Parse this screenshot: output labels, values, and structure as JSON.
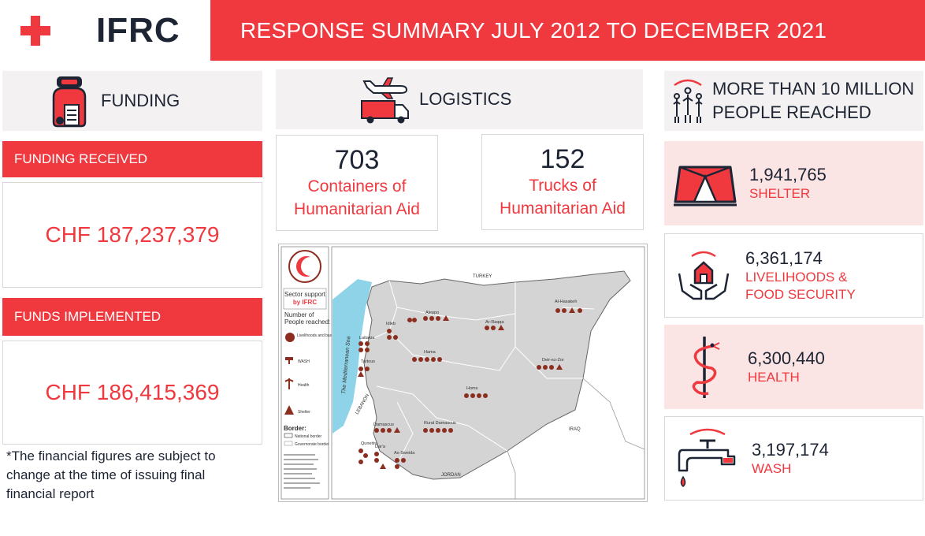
{
  "header": {
    "logo_text": "IFRC",
    "title": "RESPONSE SUMMARY JULY 2012 TO DECEMBER 2021"
  },
  "funding": {
    "title": "FUNDING",
    "received_label": "FUNDING RECEIVED",
    "received_amount": "CHF 187,237,379",
    "implemented_label": "FUNDS IMPLEMENTED",
    "implemented_amount": "CHF 186,415,369",
    "note": "*The financial figures are subject to change at the time of issuing final financial report"
  },
  "logistics": {
    "title": "LOGISTICS",
    "stats": [
      {
        "value": "703",
        "label_line1": "Containers of",
        "label_line2": "Humanitarian Aid"
      },
      {
        "value": "152",
        "label_line1": "Trucks of",
        "label_line2": "Humanitarian Aid"
      }
    ]
  },
  "reached": {
    "title_line1": "MORE THAN 10 MILLION",
    "title_line2": "PEOPLE REACHED",
    "items": [
      {
        "value": "1,941,765",
        "label_line1": "SHELTER",
        "label_line2": ""
      },
      {
        "value": "6,361,174",
        "label_line1": "LIVELIHOODS &",
        "label_line2": "FOOD SECURITY"
      },
      {
        "value": "6,300,440",
        "label_line1": "HEALTH",
        "label_line2": ""
      },
      {
        "value": "3,197,174",
        "label_line1": "WASH",
        "label_line2": ""
      }
    ]
  },
  "map": {
    "legend_title_line1": "Sector support",
    "legend_title_line2": "by IFRC",
    "legend_people_line1": "Number of",
    "legend_people_line2": "People reached:",
    "legend_items": [
      "Livelihoods and basic needs",
      "WASH",
      "Health",
      "Shelter"
    ],
    "border_title": "Border:",
    "border_items": [
      "National border",
      "Governorate border"
    ],
    "countries": [
      "TURKEY",
      "IRAQ",
      "JORDAN",
      "LEBANON"
    ],
    "sea": "The Mediterranean Sea",
    "governorates": [
      "Al-Hasakeh",
      "Aleppo",
      "Idleb",
      "Ar-Raqqa",
      "Lattakia",
      "Hama",
      "Tartous",
      "Deir-ez-Zor",
      "Homs",
      "Damascus",
      "Rural Damascus",
      "Quneitra",
      "Dar'a",
      "As-Sweida"
    ]
  },
  "colors": {
    "accent": "#f0393f",
    "dark": "#1d2433",
    "panel": "#f3f1f1",
    "pink": "#fbe4e4",
    "map_fill": "#d4d4d4",
    "sea": "#8fd3e8",
    "icon_brown": "#8b2e1f"
  }
}
